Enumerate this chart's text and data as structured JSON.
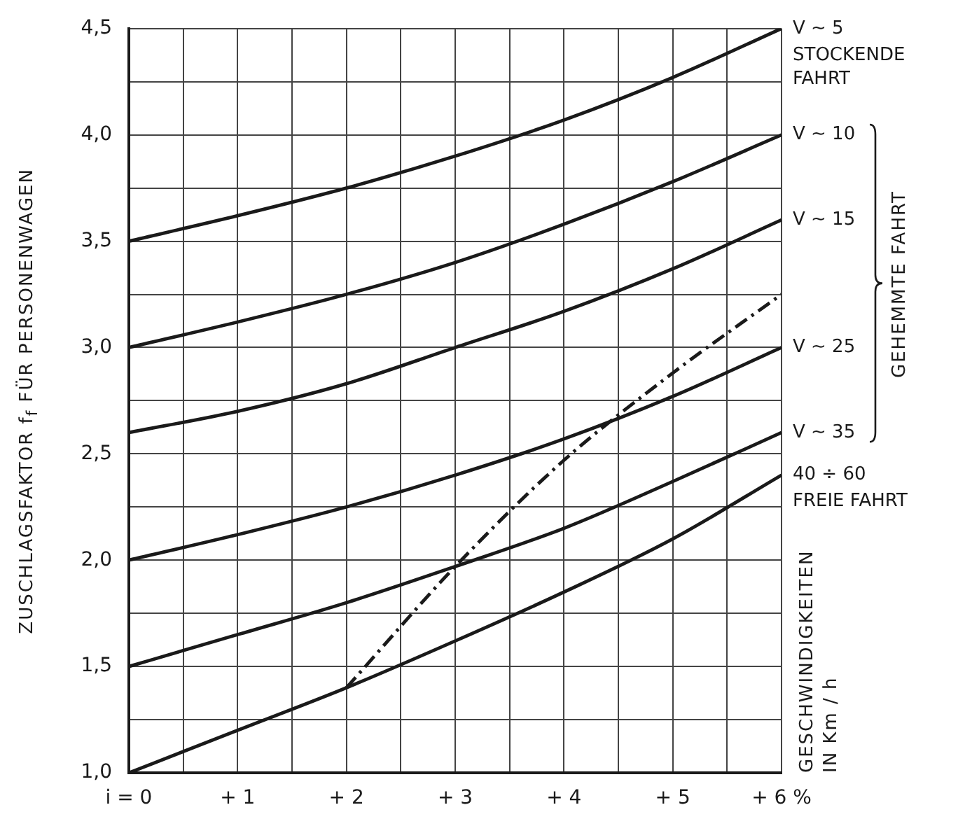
{
  "chart_data": {
    "type": "line",
    "ylabel": "ZUSCHLAGSFAKTOR f$_{f}$ FÜR PERSONENWAGEN",
    "xlim": [
      0,
      6
    ],
    "ylim": [
      1,
      4.5
    ],
    "xticks": [
      {
        "value": 0,
        "label": "i = 0"
      },
      {
        "value": 0.5,
        "label": null
      },
      {
        "value": 1,
        "label": "+ 1"
      },
      {
        "value": 1.5,
        "label": null
      },
      {
        "value": 2,
        "label": "+ 2"
      },
      {
        "value": 2.5,
        "label": null
      },
      {
        "value": 3,
        "label": "+ 3"
      },
      {
        "value": 3.5,
        "label": null
      },
      {
        "value": 4,
        "label": "+ 4"
      },
      {
        "value": 4.5,
        "label": null
      },
      {
        "value": 5,
        "label": "+ 5"
      },
      {
        "value": 5.5,
        "label": null
      },
      {
        "value": 6,
        "label": "+ 6 %"
      }
    ],
    "yticks": [
      {
        "value": 1,
        "label": "1,0"
      },
      {
        "value": 1.25,
        "label": null
      },
      {
        "value": 1.5,
        "label": "1,5"
      },
      {
        "value": 1.75,
        "label": null
      },
      {
        "value": 2,
        "label": "2,0"
      },
      {
        "value": 2.25,
        "label": null
      },
      {
        "value": 2.5,
        "label": "2,5"
      },
      {
        "value": 2.75,
        "label": null
      },
      {
        "value": 3,
        "label": "3,0"
      },
      {
        "value": 3.25,
        "label": null
      },
      {
        "value": 3.5,
        "label": "3,5"
      },
      {
        "value": 3.75,
        "label": null
      },
      {
        "value": 4,
        "label": "4,0"
      },
      {
        "value": 4.25,
        "label": null
      },
      {
        "value": 4.5,
        "label": "4,5"
      }
    ],
    "x": [
      0,
      1,
      2,
      3,
      4,
      5,
      6
    ],
    "series": [
      {
        "name": "V ~ 5",
        "color": "#1a1a1a",
        "values": [
          3.5,
          3.62,
          3.75,
          3.9,
          4.07,
          4.27,
          4.5
        ]
      },
      {
        "name": "V ~ 10",
        "color": "#1a1a1a",
        "values": [
          3.0,
          3.12,
          3.25,
          3.4,
          3.58,
          3.78,
          4.0
        ]
      },
      {
        "name": "V ~ 15",
        "color": "#1a1a1a",
        "values": [
          2.6,
          2.7,
          2.83,
          3.0,
          3.17,
          3.37,
          3.6
        ]
      },
      {
        "name": "V ~ 25",
        "color": "#1a1a1a",
        "values": [
          2.0,
          2.12,
          2.25,
          2.4,
          2.57,
          2.77,
          3.0
        ]
      },
      {
        "name": "V ~ 35",
        "color": "#1a1a1a",
        "values": [
          1.5,
          1.65,
          1.8,
          1.97,
          2.15,
          2.37,
          2.6
        ]
      },
      {
        "name": "40 ÷ 60",
        "color": "#1a1a1a",
        "values": [
          1.0,
          1.2,
          1.4,
          1.62,
          1.85,
          2.1,
          2.4
        ]
      },
      {
        "color": "#1a1a1a",
        "line_style": "dashed",
        "x": [
          2,
          3,
          4,
          5,
          6
        ],
        "values": [
          1.4,
          1.97,
          2.47,
          2.88,
          3.25
        ]
      }
    ],
    "annotations": [
      {
        "text": "STOCKENDE FAHRT",
        "x": 6,
        "y": 4.5
      },
      "GEHEMMTE FAHRT",
      {
        "text": "FREIE FAHRT",
        "x": 6,
        "y": 2.4
      },
      "GESCHWINDIGKEITEN IN Km / h"
    ],
    "grid": true,
    "legend": false,
    "marker": "none",
    "line_style": "solid"
  }
}
